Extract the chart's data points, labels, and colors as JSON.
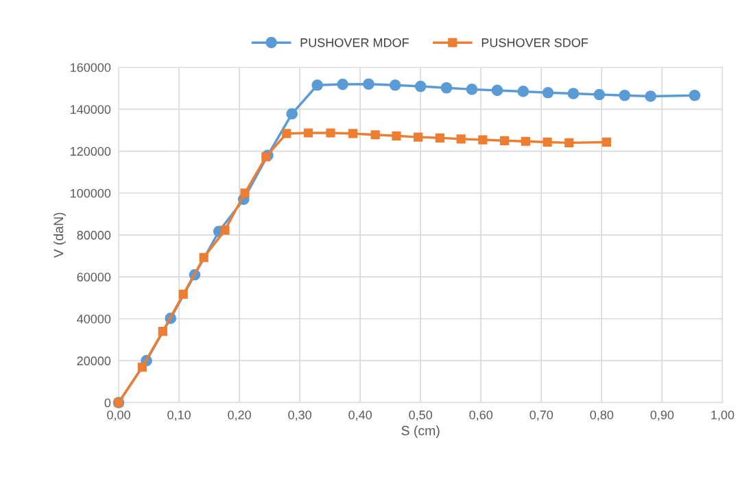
{
  "chart_data": {
    "type": "line",
    "xlabel": "S (cm)",
    "ylabel": "V (daN)",
    "series": [
      {
        "name": "PUSHOVER MDOF",
        "color": "#5b9bd5",
        "marker": "circle",
        "x": [
          0,
          0.046,
          0.086,
          0.126,
          0.166,
          0.207,
          0.247,
          0.287,
          0.329,
          0.371,
          0.414,
          0.458,
          0.5,
          0.543,
          0.585,
          0.627,
          0.67,
          0.711,
          0.753,
          0.796,
          0.838,
          0.881,
          0.954
        ],
        "values": [
          0,
          20000,
          40200,
          61000,
          81700,
          97000,
          118000,
          137800,
          151500,
          151900,
          152000,
          151500,
          150900,
          150200,
          149500,
          149000,
          148500,
          147900,
          147500,
          147000,
          146600,
          146200,
          146600
        ]
      },
      {
        "name": "PUSHOVER SDOF",
        "color": "#ed7d31",
        "marker": "square",
        "x": [
          0,
          0.039,
          0.073,
          0.107,
          0.141,
          0.176,
          0.209,
          0.244,
          0.278,
          0.314,
          0.351,
          0.388,
          0.425,
          0.46,
          0.496,
          0.532,
          0.567,
          0.603,
          0.639,
          0.674,
          0.71,
          0.746,
          0.808
        ],
        "values": [
          0,
          16900,
          34000,
          51700,
          69200,
          82300,
          100000,
          117300,
          128400,
          128700,
          128700,
          128400,
          127800,
          127300,
          126700,
          126300,
          125800,
          125400,
          125000,
          124700,
          124300,
          124000,
          124300
        ]
      }
    ],
    "xlim": [
      0,
      1
    ],
    "xticks": [
      {
        "value": 0,
        "label": "0,00"
      },
      {
        "value": 0.1,
        "label": "0,10"
      },
      {
        "value": 0.2,
        "label": "0,20"
      },
      {
        "value": 0.3,
        "label": "0,30"
      },
      {
        "value": 0.4,
        "label": "0,40"
      },
      {
        "value": 0.5,
        "label": "0,50"
      },
      {
        "value": 0.6,
        "label": "0,60"
      },
      {
        "value": 0.7,
        "label": "0,70"
      },
      {
        "value": 0.8,
        "label": "0,80"
      },
      {
        "value": 0.9,
        "label": "0,90"
      },
      {
        "value": 1,
        "label": "1,00"
      }
    ],
    "ylim": [
      0,
      160000
    ],
    "yticks": [
      0,
      20000,
      40000,
      60000,
      80000,
      100000,
      120000,
      140000,
      160000
    ],
    "grid": true,
    "legend": "top",
    "line_style": "solid"
  }
}
